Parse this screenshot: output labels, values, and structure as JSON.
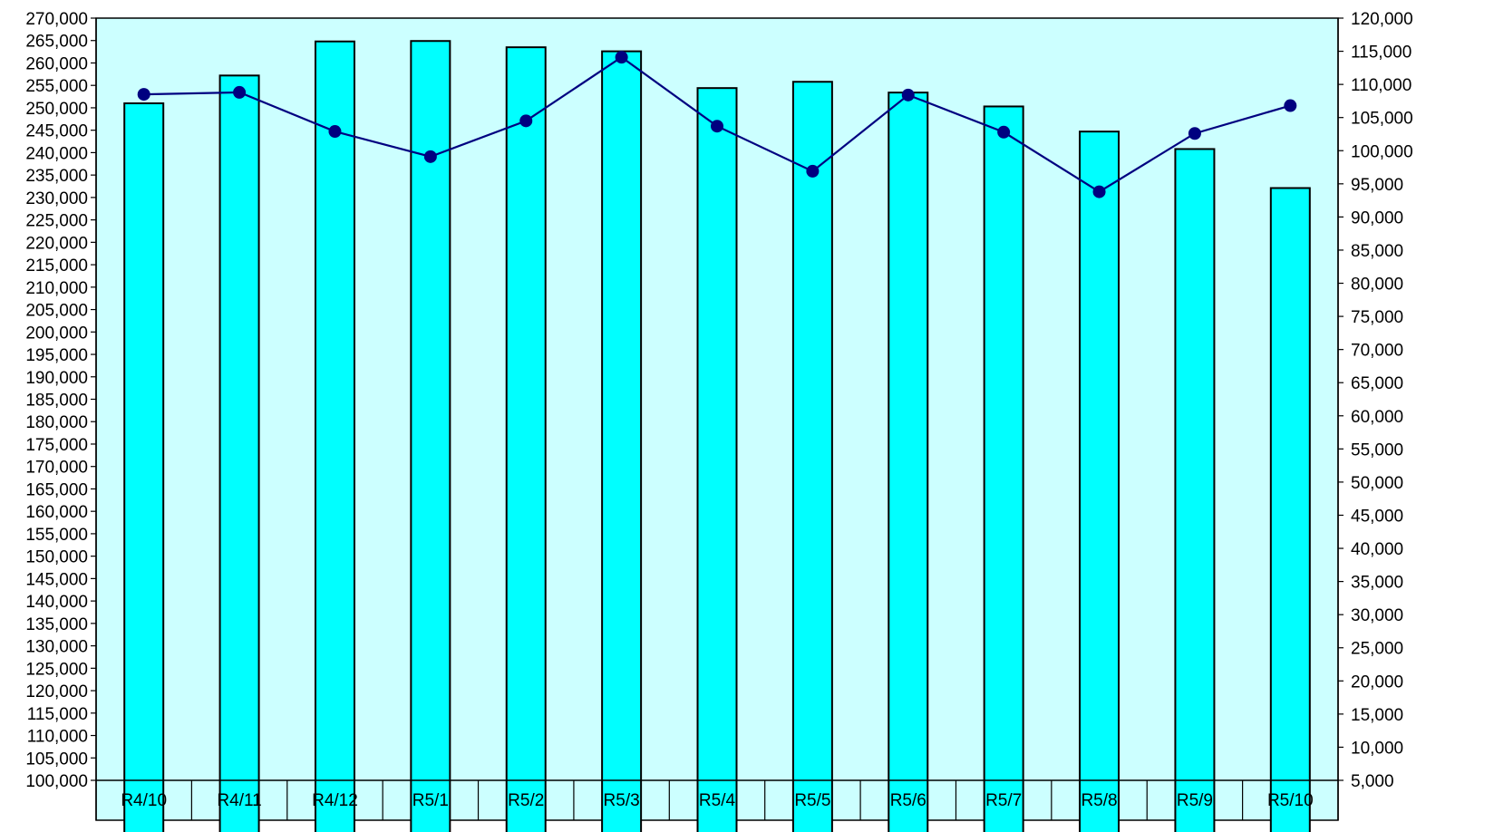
{
  "chart_data": {
    "type": "bar",
    "categories": [
      "R4/10",
      "R4/11",
      "R4/12",
      "R5/1",
      "R5/2",
      "R5/3",
      "R5/4",
      "R5/5",
      "R5/6",
      "R5/7",
      "R5/8",
      "R5/9",
      "R5/10"
    ],
    "series": [
      {
        "type": "bar",
        "axis": "left",
        "color": "#00FFFF",
        "values": [
          251000,
          257200,
          264800,
          264900,
          263500,
          262600,
          254400,
          255800,
          253400,
          250300,
          244700,
          240800,
          232100
        ]
      },
      {
        "type": "line",
        "axis": "right",
        "color": "#000080",
        "values": [
          108500,
          108800,
          102900,
          99100,
          104500,
          114100,
          103700,
          96900,
          108400,
          102800,
          93800,
          102600,
          106800
        ]
      }
    ],
    "ylim": [
      100000,
      270000
    ],
    "ytick_step": 5000,
    "y2lim": [
      5000,
      120000
    ],
    "y2tick_step": 5000,
    "plot_background": "#CCFFFF",
    "grid": false,
    "legend": "none",
    "ytick_labels": [
      "100,000",
      "105,000",
      "110,000",
      "115,000",
      "120,000",
      "125,000",
      "130,000",
      "135,000",
      "140,000",
      "145,000",
      "150,000",
      "155,000",
      "160,000",
      "165,000",
      "170,000",
      "175,000",
      "180,000",
      "185,000",
      "190,000",
      "195,000",
      "200,000",
      "205,000",
      "210,000",
      "215,000",
      "220,000",
      "225,000",
      "230,000",
      "235,000",
      "240,000",
      "245,000",
      "250,000",
      "255,000",
      "260,000",
      "265,000",
      "270,000"
    ],
    "y2tick_labels": [
      "5,000",
      "10,000",
      "15,000",
      "20,000",
      "25,000",
      "30,000",
      "35,000",
      "40,000",
      "45,000",
      "50,000",
      "55,000",
      "60,000",
      "65,000",
      "70,000",
      "75,000",
      "80,000",
      "85,000",
      "90,000",
      "95,000",
      "100,000",
      "105,000",
      "110,000",
      "115,000",
      "120,000"
    ]
  }
}
